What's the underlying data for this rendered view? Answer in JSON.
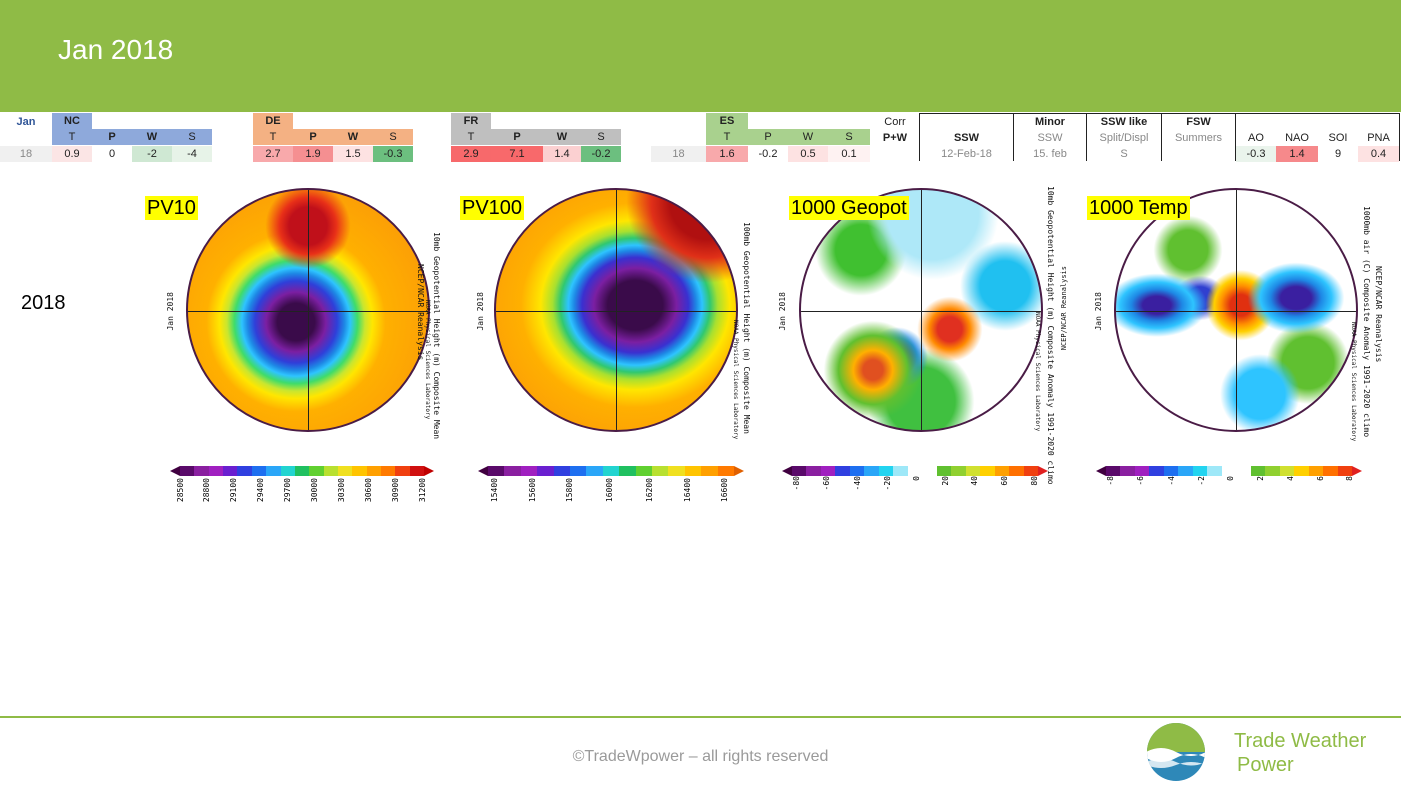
{
  "header": {
    "title": "Jan 2018"
  },
  "table": {
    "jan_label": "Jan",
    "year_value": "18",
    "nc": {
      "name": "NC",
      "cols": [
        "T",
        "P",
        "W",
        "S"
      ],
      "values": [
        "0.9",
        "0",
        "-2",
        "-4"
      ]
    },
    "de": {
      "name": "DE",
      "cols": [
        "T",
        "P",
        "W",
        "S"
      ],
      "values": [
        "2.7",
        "1.9",
        "1.5",
        "-0.3"
      ]
    },
    "fr": {
      "name": "FR",
      "cols": [
        "T",
        "P",
        "W",
        "S"
      ],
      "values": [
        "2.9",
        "7.1",
        "1.4",
        "-0.2"
      ]
    },
    "es": {
      "name": "ES",
      "year_value": "18",
      "cols": [
        "T",
        "P",
        "W",
        "S"
      ],
      "values": [
        "1.6",
        "-0.2",
        "0.5",
        "0.1"
      ]
    },
    "corr": {
      "line1": "Corr",
      "line2": "P+W"
    },
    "ssw": {
      "header": "SSW",
      "value": "12-Feb-18"
    },
    "minor": {
      "header": "Minor",
      "sub": "SSW",
      "value": "15. feb"
    },
    "ssw_like": {
      "header": "SSW like",
      "sub": "Split/Displ",
      "value": "S"
    },
    "fsw": {
      "header": "FSW",
      "sub": "Summers",
      "value": ""
    },
    "indices": {
      "cols": [
        "AO",
        "NAO",
        "SOI",
        "PNA"
      ],
      "values": [
        "-0.3",
        "1.4",
        "9",
        "0.4"
      ]
    }
  },
  "row_label": "2018",
  "maps": [
    {
      "label": "PV10",
      "date": "Jan 2018",
      "side1": "10mb Geopotential Height (m) Composite Mean",
      "side2": "NCEP/NCAR Reanalysis",
      "side3": "NOAA Physical Sciences Laboratory",
      "ticks": [
        "28500",
        "28800",
        "29100",
        "29400",
        "29700",
        "30000",
        "30300",
        "30600",
        "30900",
        "31200"
      ]
    },
    {
      "label": "PV100",
      "date": "Jan 2018",
      "side1": "100mb Geopotential Height (m) Composite Mean",
      "side2": "NCEP/NCAR Reanalysis",
      "side3": "NOAA Physical Sciences Laboratory",
      "ticks": [
        "15400",
        "15600",
        "15800",
        "16000",
        "16200",
        "16400",
        "16600"
      ]
    },
    {
      "label": "1000 Geopot",
      "date": "Jan 2018",
      "side1": "10mb Geopotential Height (m) Composite Anomaly 1991-2020 climo",
      "side2": "NCEP/NCAR Reanalysis",
      "side3": "NOAA Physical Sciences Laboratory",
      "ticks": [
        "-80",
        "-60",
        "-40",
        "-20",
        "0",
        "20",
        "40",
        "60",
        "80"
      ]
    },
    {
      "label": "1000 Temp",
      "date": "Jan 2018",
      "side1": "1000mb air (C) Composite Anomaly 1991-2020 climo",
      "side2": "NCEP/NCAR Reanalysis",
      "side3": "NOAA Physical Sciences Laboratory",
      "ticks": [
        "-8",
        "-6",
        "-4",
        "-2",
        "0",
        "2",
        "4",
        "6",
        "8"
      ]
    }
  ],
  "footer": {
    "copyright": "©TradeWpower – all rights reserved",
    "brand_line1": "Trade Weather",
    "brand_line2": "Power"
  },
  "colors": {
    "header_green": "#8fbb46",
    "nc_blue": "#8ea9db",
    "de_orange": "#f4b183",
    "fr_gray": "#bfbfbf",
    "es_green": "#a9d18e"
  }
}
